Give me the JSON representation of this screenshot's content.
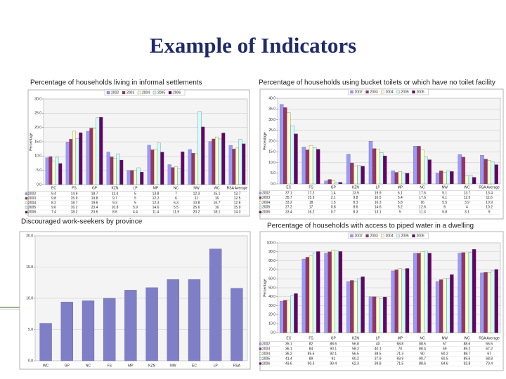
{
  "title": "Example of Indicators",
  "chart_data": [
    {
      "type": "bar",
      "title": "Percentage of households living in informal settlements",
      "y_label": "Percentage",
      "categories": [
        "EC",
        "FS",
        "GP",
        "KZN",
        "LP",
        "MP",
        "NC",
        "NW",
        "WC",
        "RSA Average"
      ],
      "series": [
        {
          "name": "2002",
          "color": "#9999ff",
          "values": [
            9.4,
            14.9,
            18.7,
            11.4,
            5.0,
            13.8,
            7.0,
            12.3,
            15.1,
            13.7
          ]
        },
        {
          "name": "2003",
          "color": "#993366",
          "values": [
            9.8,
            15.9,
            19.8,
            9.7,
            5.0,
            12.2,
            6.0,
            11.0,
            16.0,
            12.5
          ]
        },
        {
          "name": "2004",
          "color": "#ffffcc",
          "values": [
            8.2,
            18.7,
            19.6,
            9.3,
            5.0,
            12.3,
            6.3,
            10.8,
            16.7,
            12.8
          ]
        },
        {
          "name": "2005",
          "color": "#ccffff",
          "values": [
            9.6,
            16.2,
            23.4,
            10.8,
            5.9,
            14.6,
            5.5,
            25.6,
            16.0,
            15.9
          ]
        },
        {
          "name": "2006",
          "color": "#660066",
          "values": [
            7.4,
            18.2,
            23.6,
            8.6,
            4.4,
            11.4,
            11.5,
            20.2,
            18.1,
            14.3
          ]
        }
      ],
      "ylim": [
        0,
        30
      ],
      "yticks": [
        {
          "value": 0,
          "label": "0.0"
        },
        {
          "value": 5,
          "label": "5.0"
        },
        {
          "value": 10,
          "label": "10.0"
        },
        {
          "value": 15,
          "label": "15.0"
        },
        {
          "value": 20,
          "label": "20.0"
        },
        {
          "value": 25,
          "label": "25.0"
        },
        {
          "value": 30,
          "label": "30.0"
        }
      ],
      "legend": "top",
      "table": true
    },
    {
      "type": "bar",
      "title": "Percentage of households using bucket toilets or which have no toilet facility",
      "y_label": "Percentage",
      "categories": [
        "EC",
        "FS",
        "GP",
        "KZN",
        "LP",
        "MP",
        "NC",
        "NW",
        "WC",
        "RSA Average"
      ],
      "series": [
        {
          "name": "2002",
          "color": "#9999ff",
          "values": [
            37.1,
            17.2,
            1.4,
            13.9,
            19.9,
            6.1,
            17.6,
            5.1,
            13.7,
            13.4
          ]
        },
        {
          "name": "2003",
          "color": "#993366",
          "values": [
            35.7,
            15.9,
            2.1,
            9.8,
            16.5,
            5.4,
            17.6,
            6.1,
            12.5,
            11.6
          ]
        },
        {
          "name": "2004",
          "color": "#ffffcc",
          "values": [
            33.2,
            18.0,
            1.5,
            8.3,
            16.3,
            5.8,
            16.0,
            5.5,
            3.9,
            10.9
          ]
        },
        {
          "name": "2005",
          "color": "#ccffff",
          "values": [
            27.2,
            17.0,
            0.8,
            8.6,
            14.6,
            5.2,
            12.6,
            6.0,
            4.0,
            10.2
          ]
        },
        {
          "name": "2006",
          "color": "#660066",
          "values": [
            23.4,
            16.2,
            0.7,
            8.3,
            13.1,
            5.0,
            11.3,
            5.8,
            3.1,
            9.0
          ]
        }
      ],
      "ylim": [
        0,
        40
      ],
      "yticks": [
        {
          "value": 0,
          "label": "0.0"
        },
        {
          "value": 5,
          "label": "5.0"
        },
        {
          "value": 10,
          "label": "10.0"
        },
        {
          "value": 15,
          "label": "15.0"
        },
        {
          "value": 20,
          "label": "20.0"
        },
        {
          "value": 25,
          "label": "25.0"
        },
        {
          "value": 30,
          "label": "30.0"
        },
        {
          "value": 35,
          "label": "35.0"
        },
        {
          "value": 40,
          "label": "40.0"
        }
      ],
      "legend": "top",
      "table": true
    },
    {
      "type": "bar",
      "title": "Discouraged work-seekers by province",
      "color": "#7f7fc8",
      "categories": [
        "WC",
        "GP",
        "NC",
        "FS",
        "MP",
        "KZN",
        "NW",
        "EC",
        "LP",
        "RSA"
      ],
      "values": [
        6.0,
        9.4,
        9.6,
        10.0,
        11.3,
        11.7,
        13.0,
        13.0,
        17.9,
        11.6
      ],
      "ylim": [
        0,
        20
      ],
      "yticks": [
        {
          "value": 0,
          "label": "0.0"
        },
        {
          "value": 5,
          "label": "5.0"
        },
        {
          "value": 10,
          "label": "10.0"
        },
        {
          "value": 15,
          "label": "15.0"
        },
        {
          "value": 20,
          "label": "20.0"
        }
      ]
    },
    {
      "type": "bar",
      "title": "Percentage of households with access to piped water in a dwelling",
      "y_label": "Percentage",
      "categories": [
        "EC",
        "FS",
        "GP",
        "KZN",
        "LP",
        "MP",
        "NC",
        "NW",
        "WC",
        "RSA Average"
      ],
      "series": [
        {
          "name": "2002",
          "color": "#9999ff",
          "values": [
            35.1,
            82.0,
            88.6,
            56.8,
            40.0,
            68.8,
            88.5,
            57.0,
            88.6,
            66.5
          ]
        },
        {
          "name": "2003",
          "color": "#993366",
          "values": [
            36.1,
            84.0,
            90.1,
            58.2,
            40.1,
            70.0,
            88.4,
            59.0,
            89.2,
            67.2
          ]
        },
        {
          "name": "2004",
          "color": "#ffffcc",
          "values": [
            36.2,
            85.5,
            92.1,
            56.5,
            38.5,
            71.3,
            90.0,
            60.2,
            88.7,
            67.0
          ]
        },
        {
          "name": "2005",
          "color": "#ccffff",
          "values": [
            41.4,
            89.0,
            91.0,
            60.2,
            37.9,
            69.9,
            90.7,
            60.5,
            89.6,
            68.8
          ]
        },
        {
          "name": "2006",
          "color": "#660066",
          "values": [
            43.6,
            90.3,
            90.4,
            62.3,
            39.8,
            71.5,
            88.6,
            64.6,
            92.8,
            70.4
          ]
        }
      ],
      "ylim": [
        0,
        100
      ],
      "yticks": [
        {
          "value": 0,
          "label": "0.0"
        },
        {
          "value": 10,
          "label": "10.0"
        },
        {
          "value": 20,
          "label": "20.0"
        },
        {
          "value": 30,
          "label": "30.0"
        },
        {
          "value": 40,
          "label": "40.0"
        },
        {
          "value": 50,
          "label": "50.0"
        },
        {
          "value": 60,
          "label": "60.0"
        },
        {
          "value": 70,
          "label": "70.0"
        },
        {
          "value": 80,
          "label": "80.0"
        },
        {
          "value": 90,
          "label": "90.0"
        },
        {
          "value": 100,
          "label": "100.0"
        }
      ],
      "legend": "top",
      "table": true
    }
  ]
}
